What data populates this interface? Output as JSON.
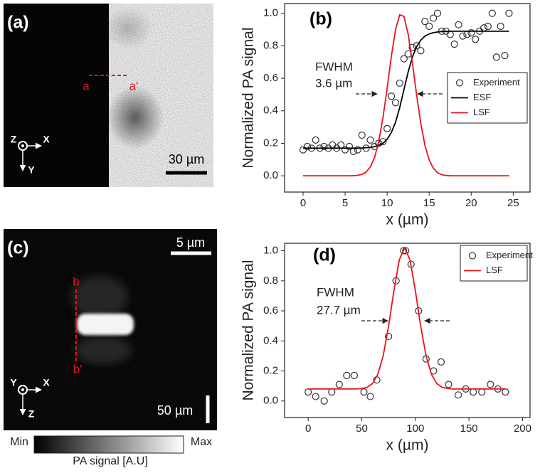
{
  "image_a": {
    "label": "(a)",
    "marker_start": "a",
    "marker_end": "a'",
    "scale_bar": "30 µm",
    "axes": [
      "Z",
      "X",
      "Y"
    ]
  },
  "image_c": {
    "label": "(c)",
    "marker_start": "b",
    "marker_end": "b'",
    "scale_bar_top": "5 µm",
    "scale_bar_bottom": "50 µm",
    "axes": [
      "Y",
      "X",
      "Z"
    ]
  },
  "colorbar": {
    "min": "Min",
    "max": "Max",
    "label": "PA signal [A.U]"
  },
  "chart_data": [
    {
      "type": "line",
      "panel": "(b)",
      "xlabel": "x (µm)",
      "ylabel": "Normalized PA signal",
      "annotations": [
        "FWHM",
        "3.6 µm"
      ],
      "xlim": [
        -2.2,
        27
      ],
      "ylim": [
        -0.1,
        1.06
      ],
      "xticks": [
        0,
        5,
        10,
        15,
        20,
        25
      ],
      "yticks": [
        {
          "value": 0,
          "label": "0.0"
        },
        0.2,
        0.4,
        0.6,
        0.8,
        {
          "value": 1,
          "label": "1.0"
        }
      ],
      "legend": "center right",
      "series": [
        {
          "name": "Experiment",
          "style": "markers",
          "color": "#333333",
          "x": [
            0,
            0.5,
            1,
            1.5,
            2,
            2.5,
            3,
            3.5,
            4,
            4.5,
            5,
            5.5,
            6,
            6.5,
            7,
            7.5,
            8,
            8.5,
            9,
            9.5,
            10,
            10.5,
            11,
            11.5,
            12,
            12.5,
            13,
            13.5,
            14,
            14.5,
            15,
            15.5,
            16,
            16.5,
            17,
            17.5,
            18,
            18.5,
            19,
            19.5,
            20,
            20.5,
            21,
            21.5,
            22,
            22.5,
            23,
            23.5,
            24,
            24.5
          ],
          "values": [
            0.16,
            0.18,
            0.17,
            0.22,
            0.17,
            0.18,
            0.17,
            0.19,
            0.17,
            0.19,
            0.16,
            0.18,
            0.15,
            0.16,
            0.25,
            0.17,
            0.22,
            0.18,
            0.2,
            0.21,
            0.29,
            0.49,
            0.45,
            0.57,
            0.72,
            0.75,
            0.79,
            0.8,
            0.77,
            0.95,
            0.92,
            0.97,
            1.0,
            0.89,
            0.89,
            0.87,
            0.81,
            0.93,
            0.86,
            0.87,
            0.88,
            0.84,
            0.89,
            0.91,
            0.92,
            1.0,
            0.73,
            0.92,
            0.74,
            1.0
          ]
        },
        {
          "name": "ESF",
          "style": "line",
          "color": "#000000",
          "x": [
            0,
            0.5,
            1,
            1.5,
            2,
            2.5,
            3,
            3.5,
            4,
            4.5,
            5,
            5.5,
            6,
            6.5,
            7,
            7.5,
            8,
            8.5,
            9,
            9.5,
            10,
            10.5,
            11,
            11.5,
            12,
            12.5,
            13,
            13.5,
            14,
            14.5,
            15,
            15.5,
            16,
            16.5,
            17,
            17.5,
            18,
            18.5,
            19,
            19.5,
            20,
            20.5,
            21,
            21.5,
            22,
            22.5,
            23,
            23.5,
            24,
            24.5
          ],
          "values": [
            0.17,
            0.17,
            0.17,
            0.17,
            0.17,
            0.17,
            0.17,
            0.17,
            0.17,
            0.17,
            0.17,
            0.17,
            0.17,
            0.17,
            0.171,
            0.173,
            0.175,
            0.179,
            0.187,
            0.2,
            0.225,
            0.266,
            0.33,
            0.421,
            0.53,
            0.639,
            0.73,
            0.794,
            0.835,
            0.86,
            0.873,
            0.881,
            0.885,
            0.888,
            0.889,
            0.89,
            0.89,
            0.89,
            0.89,
            0.89,
            0.89,
            0.89,
            0.89,
            0.89,
            0.89,
            0.89,
            0.89,
            0.89,
            0.89,
            0.89
          ]
        },
        {
          "name": "LSF",
          "style": "line",
          "color": "#e8141b",
          "x": [
            0,
            0.5,
            1,
            1.5,
            2,
            2.5,
            3,
            3.5,
            4,
            4.5,
            5,
            5.5,
            6,
            6.5,
            7,
            7.5,
            8,
            8.5,
            9,
            9.5,
            10,
            10.5,
            11,
            11.5,
            12,
            12.5,
            13,
            13.5,
            14,
            14.5,
            15,
            15.5,
            16,
            16.5,
            17,
            17.5,
            18,
            18.5,
            19,
            19.5,
            20,
            20.5,
            21,
            21.5,
            22,
            22.5,
            23,
            23.5,
            24,
            24.5
          ],
          "values": [
            0,
            0,
            0,
            0,
            0,
            0,
            0,
            0,
            0,
            0,
            0,
            0,
            0.001,
            0.003,
            0.009,
            0.023,
            0.054,
            0.112,
            0.211,
            0.356,
            0.539,
            0.735,
            0.9,
            0.991,
            0.981,
            0.872,
            0.697,
            0.5,
            0.323,
            0.187,
            0.098,
            0.046,
            0.019,
            0.007,
            0.002,
            0,
            0,
            0,
            0,
            0,
            0,
            0,
            0,
            0,
            0,
            0,
            0,
            0,
            0,
            0
          ]
        }
      ]
    },
    {
      "type": "line",
      "panel": "(d)",
      "xlabel": "x (µm)",
      "ylabel": "Normalized PA signal",
      "annotations": [
        "FWHM",
        "27.7 µm"
      ],
      "xlim": [
        -22,
        207
      ],
      "ylim": [
        -0.11,
        1.05
      ],
      "xticks": [
        0,
        50,
        100,
        150,
        200
      ],
      "yticks": [
        {
          "value": 0,
          "label": "0.0"
        },
        0.2,
        0.4,
        0.6,
        0.8,
        {
          "value": 1,
          "label": "1.0"
        }
      ],
      "legend": "upper right",
      "series": [
        {
          "name": "Experiment",
          "style": "markers",
          "color": "#333333",
          "x": [
            0,
            7,
            15,
            22,
            29,
            36,
            43,
            52,
            58,
            64,
            75,
            82,
            89,
            91,
            96,
            103,
            110,
            117,
            124,
            131,
            140,
            147,
            154,
            162,
            170,
            177,
            184
          ],
          "values": [
            0.06,
            0.03,
            0.0,
            0.06,
            0.11,
            0.17,
            0.17,
            0.06,
            0.03,
            0.14,
            0.43,
            0.8,
            1.0,
            1.0,
            0.91,
            0.6,
            0.28,
            0.2,
            0.26,
            0.11,
            0.04,
            0.08,
            0.06,
            0.06,
            0.11,
            0.08,
            0.06
          ]
        },
        {
          "name": "LSF",
          "style": "line",
          "color": "#e8141b",
          "x": [
            0,
            5,
            10,
            15,
            20,
            25,
            30,
            35,
            40,
            45,
            50,
            55,
            60,
            65,
            70,
            75,
            80,
            85,
            90,
            95,
            100,
            105,
            110,
            115,
            120,
            125,
            130,
            135,
            140,
            145,
            150,
            155,
            160,
            165,
            170,
            175,
            180,
            185
          ],
          "values": [
            0.08,
            0.08,
            0.08,
            0.08,
            0.08,
            0.08,
            0.08,
            0.08,
            0.08,
            0.08,
            0.083,
            0.091,
            0.116,
            0.178,
            0.301,
            0.497,
            0.735,
            0.939,
            1.02,
            0.939,
            0.735,
            0.497,
            0.301,
            0.178,
            0.116,
            0.091,
            0.083,
            0.08,
            0.08,
            0.08,
            0.08,
            0.08,
            0.08,
            0.08,
            0.08,
            0.08,
            0.08,
            0.08
          ]
        }
      ]
    }
  ]
}
